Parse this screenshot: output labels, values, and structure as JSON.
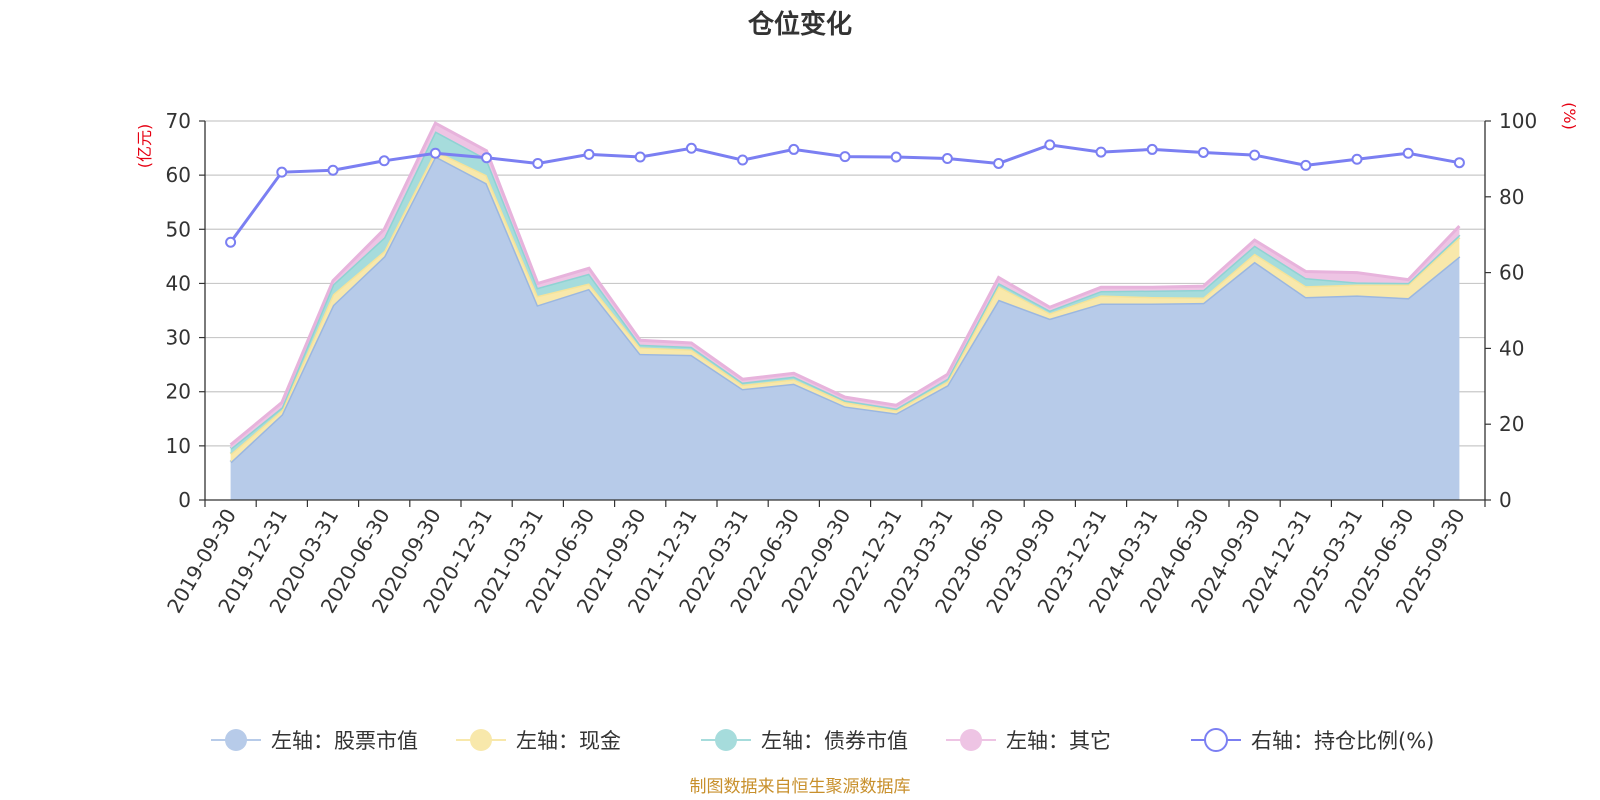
{
  "chart_data": {
    "type": "area",
    "title": "仓位变化",
    "left_axis": {
      "unit_label": "(亿元)",
      "ylim": [
        0,
        70
      ],
      "ticks": [
        "0",
        "10",
        "20",
        "30",
        "40",
        "50",
        "60",
        "70"
      ]
    },
    "right_axis": {
      "unit_label": "(%)",
      "ylim": [
        0,
        100
      ],
      "ticks": [
        "0",
        "20",
        "40",
        "60",
        "80",
        "100"
      ]
    },
    "categories": [
      "2019-09-30",
      "2019-12-31",
      "2020-03-31",
      "2020-06-30",
      "2020-09-30",
      "2020-12-31",
      "2021-03-31",
      "2021-06-30",
      "2021-09-30",
      "2021-12-31",
      "2022-03-31",
      "2022-06-30",
      "2022-09-30",
      "2022-12-31",
      "2023-03-31",
      "2023-06-30",
      "2023-09-30",
      "2023-12-31",
      "2024-03-31",
      "2024-06-30",
      "2024-09-30",
      "2024-12-31",
      "2025-03-31",
      "2025-06-30",
      "2025-09-30"
    ],
    "stacked_series": [
      {
        "name": "左轴：股票市值",
        "color": "#9bb7e0",
        "fill": "#b7cbe9",
        "values": [
          7.0,
          15.8,
          36.0,
          45.0,
          63.5,
          58.5,
          36.0,
          39.0,
          27.0,
          26.8,
          20.5,
          21.5,
          17.3,
          16.0,
          21.2,
          37.0,
          33.5,
          36.3,
          36.3,
          36.4,
          44.0,
          37.5,
          37.8,
          37.3,
          45.0
        ]
      },
      {
        "name": "左轴：现金",
        "color": "#f5e39a",
        "fill": "#f8e8ab",
        "values": [
          1.5,
          0.8,
          2.0,
          1.0,
          1.0,
          1.5,
          1.7,
          1.0,
          1.2,
          1.0,
          0.8,
          0.8,
          0.8,
          0.6,
          0.7,
          2.5,
          1.0,
          1.5,
          1.2,
          1.0,
          1.5,
          2.0,
          2.0,
          2.5,
          3.5
        ]
      },
      {
        "name": "左轴：债券市值",
        "color": "#8fd3d3",
        "fill": "#a6dcdc",
        "values": [
          1.0,
          0.5,
          1.8,
          2.5,
          3.6,
          3.0,
          1.5,
          1.8,
          0.5,
          0.5,
          0.4,
          0.5,
          0.3,
          0.3,
          0.5,
          0.6,
          0.5,
          0.8,
          1.2,
          1.4,
          1.5,
          1.5,
          0.4,
          0.3,
          0.5
        ]
      },
      {
        "name": "左轴：其它",
        "color": "#e7b3dc",
        "fill": "#eec4e4",
        "values": [
          0.7,
          0.9,
          0.7,
          1.5,
          1.5,
          1.5,
          0.8,
          1.0,
          0.8,
          0.7,
          0.6,
          0.6,
          0.6,
          0.6,
          0.8,
          1.0,
          0.6,
          0.7,
          0.6,
          0.7,
          1.0,
          1.2,
          1.8,
          0.6,
          1.6
        ]
      }
    ],
    "line_series": {
      "name": "右轴：持仓比例(%)",
      "color": "#7b7ff2",
      "axis": "right",
      "values": [
        68.0,
        86.5,
        87.0,
        89.5,
        91.5,
        90.3,
        88.8,
        91.2,
        90.5,
        92.8,
        89.7,
        92.5,
        90.6,
        90.5,
        90.1,
        88.8,
        93.7,
        91.8,
        92.5,
        91.7,
        91.0,
        88.3,
        89.9,
        91.5,
        89.0
      ]
    },
    "grid": true,
    "legend_position": "bottom"
  },
  "footer": {
    "source": "制图数据来自恒生聚源数据库"
  }
}
